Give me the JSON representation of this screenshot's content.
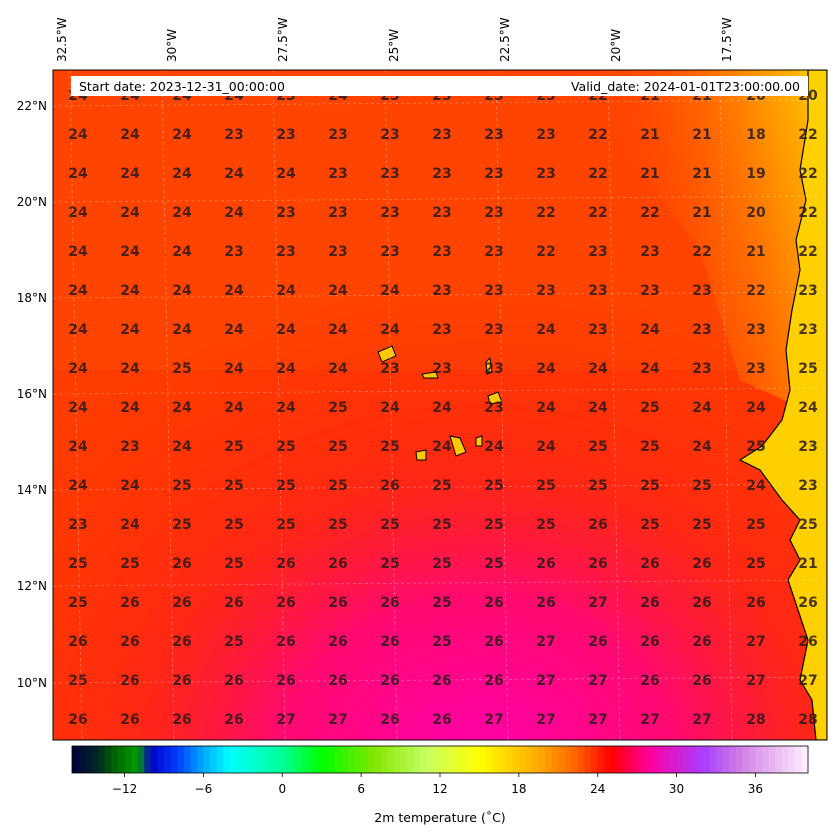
{
  "banner": {
    "start_date": "Start date: 2023-12-31_00:00:00",
    "valid_date": "Valid_date: 2024-01-01T23:00:00.00"
  },
  "map": {
    "lon_labels": [
      "32.5°W",
      "30°W",
      "27.5°W",
      "25°W",
      "22.5°W",
      "20°W",
      "17.5°W"
    ],
    "lat_labels": [
      "22°N",
      "20°N",
      "18°N",
      "16°N",
      "14°N",
      "12°N",
      "10°N"
    ],
    "grid_values": [
      [
        24,
        24,
        24,
        24,
        23,
        24,
        23,
        23,
        23,
        23,
        22,
        21,
        21,
        20,
        20
      ],
      [
        24,
        24,
        24,
        23,
        23,
        23,
        23,
        23,
        23,
        23,
        22,
        21,
        21,
        18,
        22
      ],
      [
        24,
        24,
        24,
        24,
        24,
        23,
        23,
        23,
        23,
        23,
        22,
        21,
        21,
        19,
        22
      ],
      [
        24,
        24,
        24,
        24,
        23,
        23,
        23,
        23,
        23,
        22,
        22,
        22,
        21,
        20,
        22
      ],
      [
        24,
        24,
        24,
        23,
        23,
        23,
        23,
        23,
        23,
        22,
        23,
        23,
        22,
        21,
        22
      ],
      [
        24,
        24,
        24,
        24,
        24,
        24,
        24,
        23,
        23,
        23,
        23,
        23,
        23,
        22,
        23
      ],
      [
        24,
        24,
        24,
        24,
        24,
        24,
        24,
        23,
        23,
        24,
        23,
        24,
        23,
        23,
        23
      ],
      [
        24,
        24,
        25,
        24,
        24,
        24,
        23,
        23,
        23,
        24,
        24,
        24,
        23,
        23,
        25
      ],
      [
        24,
        24,
        24,
        24,
        24,
        25,
        24,
        24,
        23,
        24,
        24,
        25,
        24,
        24,
        24
      ],
      [
        24,
        23,
        24,
        25,
        25,
        25,
        25,
        24,
        24,
        24,
        25,
        25,
        24,
        25,
        23
      ],
      [
        24,
        24,
        25,
        25,
        25,
        25,
        26,
        25,
        25,
        25,
        25,
        25,
        25,
        24,
        23
      ],
      [
        23,
        24,
        25,
        25,
        25,
        25,
        25,
        25,
        25,
        25,
        26,
        25,
        25,
        25,
        25
      ],
      [
        25,
        25,
        26,
        25,
        26,
        26,
        25,
        25,
        25,
        26,
        26,
        26,
        26,
        25,
        21
      ],
      [
        25,
        26,
        26,
        26,
        26,
        26,
        26,
        25,
        26,
        26,
        27,
        26,
        26,
        26,
        26
      ],
      [
        26,
        26,
        26,
        25,
        26,
        26,
        26,
        25,
        26,
        27,
        26,
        26,
        26,
        27,
        26
      ],
      [
        25,
        26,
        26,
        26,
        26,
        26,
        26,
        26,
        26,
        27,
        27,
        26,
        26,
        27,
        27
      ],
      [
        26,
        26,
        26,
        26,
        27,
        27,
        26,
        26,
        27,
        27,
        27,
        27,
        27,
        28,
        28
      ]
    ],
    "field_colors": {
      "warm_low": "#ffa500",
      "warm_mid": "#ff3a00",
      "warm_high": "#ff0a4a",
      "hot": "#ff00aa"
    },
    "coastline_color": "#000000"
  },
  "colorbar": {
    "label": "2m temperature ($^\\circ$C)",
    "label_display": "2m temperature (˚C)",
    "vmin": -16,
    "vmax": 40,
    "ticks": [
      -12,
      -6,
      0,
      6,
      12,
      18,
      24,
      30,
      36
    ],
    "tick_labels": [
      "−12",
      "−6",
      "0",
      "6",
      "12",
      "18",
      "24",
      "30",
      "36"
    ]
  }
}
